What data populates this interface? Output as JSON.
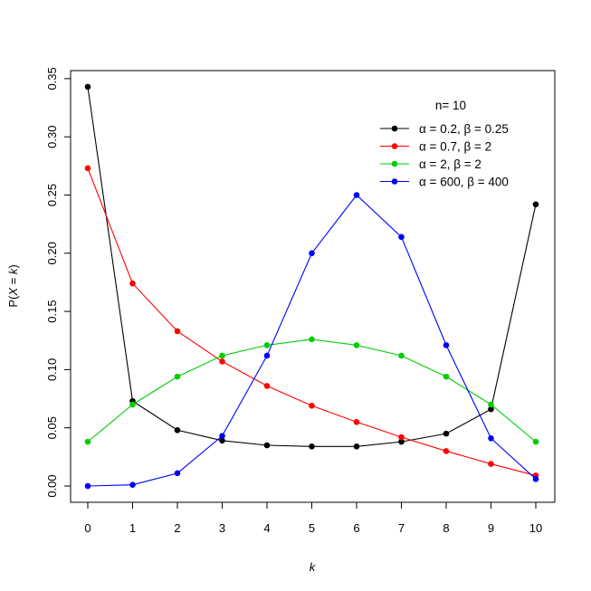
{
  "chart_data": {
    "type": "line",
    "title": "",
    "xlabel": "k",
    "ylabel": "P(X = k)",
    "x": [
      0,
      1,
      2,
      3,
      4,
      5,
      6,
      7,
      8,
      9,
      10
    ],
    "xticks": [
      "0",
      "1",
      "2",
      "3",
      "4",
      "5",
      "6",
      "7",
      "8",
      "9",
      "10"
    ],
    "yticks": [
      "0.00",
      "0.05",
      "0.10",
      "0.15",
      "0.20",
      "0.25",
      "0.30",
      "0.35"
    ],
    "ylim": [
      -0.013,
      0.357
    ],
    "xlim": [
      -0.4,
      10.4
    ],
    "grid": false,
    "legend_position": "top-right",
    "legend_title": "n= 10",
    "series": [
      {
        "name": "α = 0.2, β = 0.25",
        "alpha": "0.2",
        "beta": "0.25",
        "color": "#000000",
        "values": [
          0.343,
          0.073,
          0.048,
          0.039,
          0.035,
          0.034,
          0.034,
          0.038,
          0.045,
          0.066,
          0.242
        ]
      },
      {
        "name": "α = 0.7, β = 2",
        "alpha": "0.7",
        "beta": "2",
        "color": "#ff0000",
        "values": [
          0.273,
          0.174,
          0.133,
          0.107,
          0.086,
          0.069,
          0.055,
          0.042,
          0.03,
          0.019,
          0.009
        ]
      },
      {
        "name": "α = 2, β = 2",
        "alpha": "2",
        "beta": "2",
        "color": "#00cd00",
        "values": [
          0.038,
          0.07,
          0.094,
          0.112,
          0.121,
          0.126,
          0.121,
          0.112,
          0.094,
          0.07,
          0.038
        ]
      },
      {
        "name": "α = 600, β = 400",
        "alpha": "600",
        "beta": "400",
        "color": "#0000ff",
        "values": [
          0.0,
          0.001,
          0.011,
          0.043,
          0.112,
          0.2,
          0.25,
          0.214,
          0.121,
          0.041,
          0.006
        ]
      }
    ]
  }
}
